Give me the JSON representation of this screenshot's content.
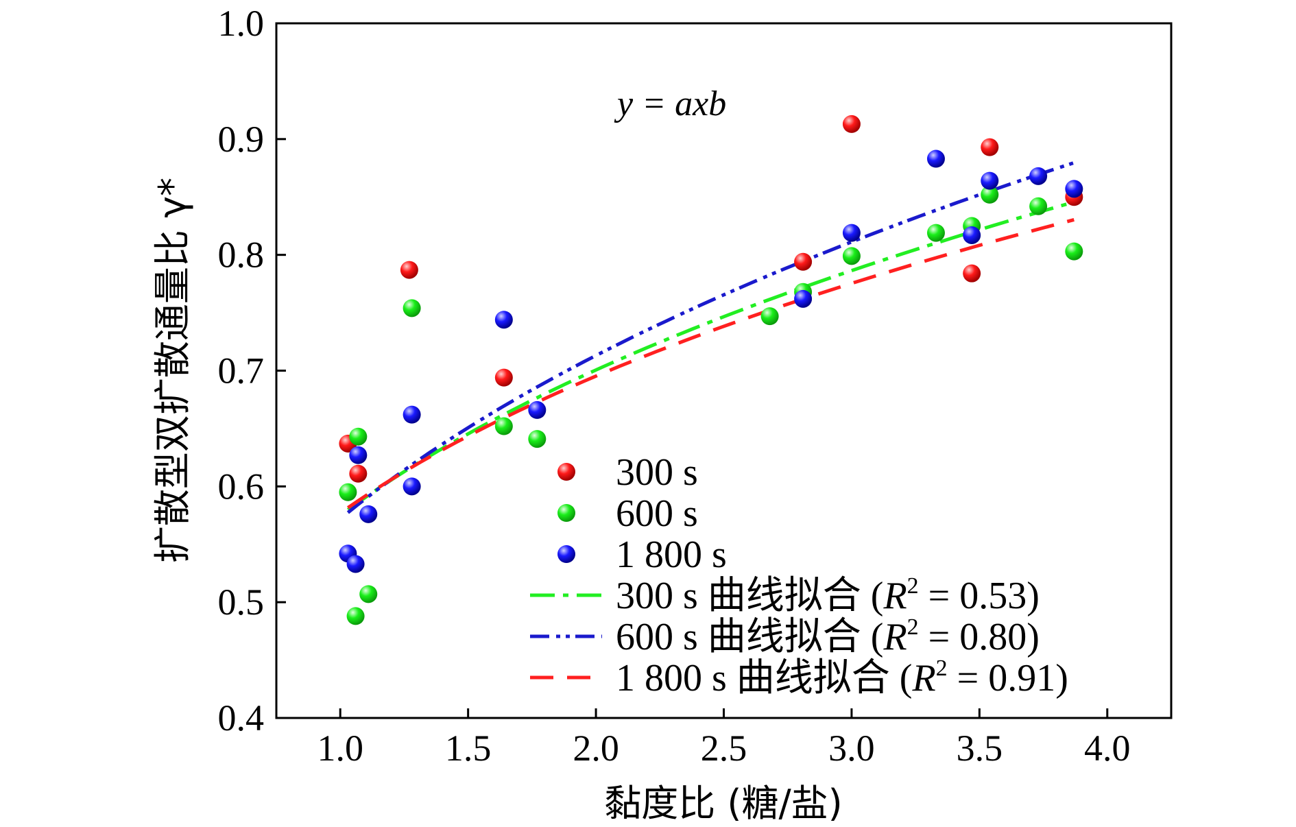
{
  "chart_data": {
    "type": "scatter",
    "xlabel": "黏度比 (糖/盐)",
    "ylabel": "扩散型双扩散通量比 γ*",
    "xlim": [
      0.75,
      4.25
    ],
    "ylim": [
      0.4,
      1.0
    ],
    "xticks": [
      "1.0",
      "1.5",
      "2.0",
      "2.5",
      "3.0",
      "3.5",
      "4.0"
    ],
    "yticks": [
      "0.4",
      "0.5",
      "0.6",
      "0.7",
      "0.8",
      "0.9",
      "1.0"
    ],
    "annotation": "y = axb",
    "series": [
      {
        "name": "300 s",
        "color": "#ff1a1a",
        "points": [
          [
            1.03,
            0.637
          ],
          [
            1.07,
            0.611
          ],
          [
            1.27,
            0.787
          ],
          [
            1.64,
            0.694
          ],
          [
            2.81,
            0.794
          ],
          [
            3.0,
            0.913
          ],
          [
            3.47,
            0.784
          ],
          [
            3.54,
            0.893
          ],
          [
            3.87,
            0.85
          ]
        ]
      },
      {
        "name": "600 s",
        "color": "#1aee1a",
        "points": [
          [
            1.03,
            0.595
          ],
          [
            1.07,
            0.643
          ],
          [
            1.06,
            0.488
          ],
          [
            1.11,
            0.507
          ],
          [
            1.28,
            0.754
          ],
          [
            1.64,
            0.652
          ],
          [
            1.77,
            0.641
          ],
          [
            2.68,
            0.747
          ],
          [
            2.81,
            0.768
          ],
          [
            3.0,
            0.799
          ],
          [
            3.33,
            0.819
          ],
          [
            3.47,
            0.825
          ],
          [
            3.54,
            0.852
          ],
          [
            3.73,
            0.842
          ],
          [
            3.87,
            0.803
          ]
        ]
      },
      {
        "name": "1 800 s",
        "color": "#1a1aff",
        "points": [
          [
            1.03,
            0.542
          ],
          [
            1.06,
            0.533
          ],
          [
            1.07,
            0.627
          ],
          [
            1.11,
            0.576
          ],
          [
            1.28,
            0.662
          ],
          [
            1.28,
            0.6
          ],
          [
            1.64,
            0.744
          ],
          [
            1.77,
            0.666
          ],
          [
            2.81,
            0.762
          ],
          [
            3.0,
            0.819
          ],
          [
            3.33,
            0.883
          ],
          [
            3.47,
            0.817
          ],
          [
            3.54,
            0.864
          ],
          [
            3.73,
            0.868
          ],
          [
            3.87,
            0.857
          ]
        ]
      }
    ],
    "fits": [
      {
        "name": "300 s 曲线拟合 (R² = 0.53)",
        "label": "300 s 曲线拟合 (",
        "r2": "0.53",
        "color": "#22ee22",
        "dash": "36,12,8,12",
        "a": 0.575,
        "b": 0.285,
        "x_range": [
          1.03,
          3.87
        ]
      },
      {
        "name": "600 s 曲线拟合 (R² = 0.80)",
        "label": "600 s 曲线拟合 (",
        "r2": "0.80",
        "color": "#1a1acc",
        "dash": "28,10,6,8,6,8",
        "a": 0.572,
        "b": 0.318,
        "x_range": [
          1.03,
          3.87
        ]
      },
      {
        "name": "1 800 s 曲线拟合 (R² = 0.91)",
        "label": "1 800 s 曲线拟合 (",
        "r2": "0.91",
        "color": "#ff2020",
        "dash": "34,20",
        "a": 0.577,
        "b": 0.269,
        "x_range": [
          1.03,
          3.87
        ]
      }
    ],
    "legend": "bottom-right",
    "grid": false
  }
}
